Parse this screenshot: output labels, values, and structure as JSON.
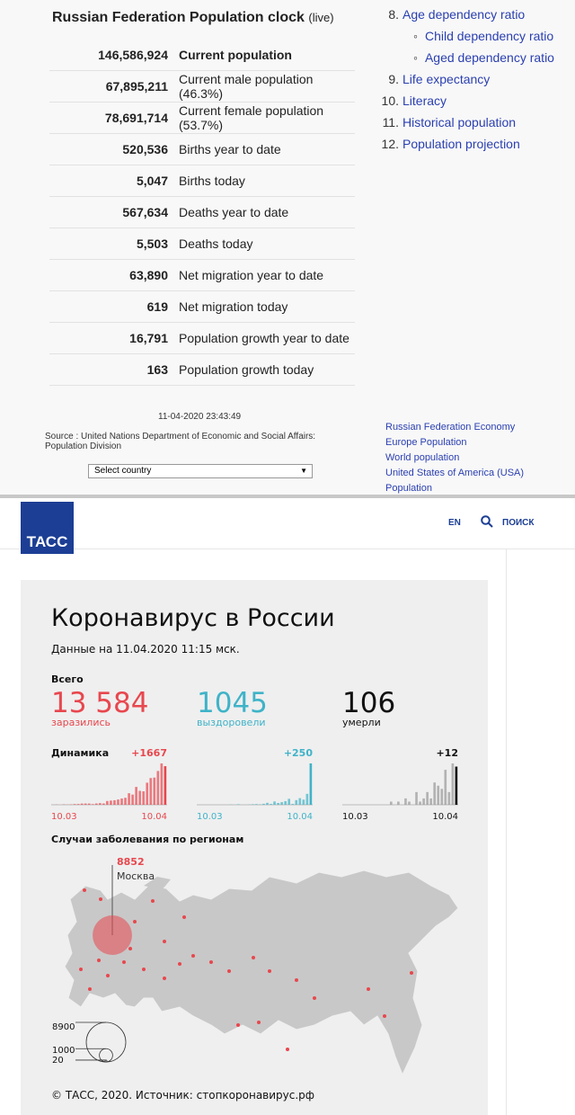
{
  "population_clock": {
    "title": "Russian Federation Population clock",
    "title_note": "(live)",
    "rows": [
      [
        "146,586,924",
        "Current population"
      ],
      [
        "67,895,211",
        "Current male population (46.3%)"
      ],
      [
        "78,691,714",
        "Current female population (53.7%)"
      ],
      [
        "520,536",
        "Births year to date"
      ],
      [
        "5,047",
        "Births today"
      ],
      [
        "567,634",
        "Deaths year to date"
      ],
      [
        "5,503",
        "Deaths today"
      ],
      [
        "63,890",
        "Net migration year to date"
      ],
      [
        "619",
        "Net migration today"
      ],
      [
        "16,791",
        "Population growth year to date"
      ],
      [
        "163",
        "Population growth today"
      ]
    ],
    "timestamp": "11-04-2020 23:43:49",
    "source": "Source : United Nations Department of Economic and Social Affairs: Population Division",
    "select": "Select country"
  },
  "toc": [
    {
      "number": "8.",
      "label": "Age dependency ratio",
      "children": [
        "Child dependency ratio",
        "Aged dependency ratio"
      ]
    },
    {
      "number": "9.",
      "label": "Life expectancy"
    },
    {
      "number": "10.",
      "label": "Literacy"
    },
    {
      "number": "11.",
      "label": "Historical population"
    },
    {
      "number": "12.",
      "label": "Population projection"
    }
  ],
  "related_links": [
    "Russian Federation Economy",
    "Europe Population",
    "World population",
    "United States of America (USA)",
    "Population"
  ],
  "tass": {
    "logo": "ТАСС",
    "lang": "EN",
    "search": "ПОИСК"
  },
  "infographic": {
    "title": "Коронавирус в России",
    "date_note": "Данные на 11.04.2020 11:15 мск.",
    "total_label": "Всего",
    "stats": [
      {
        "value": "13 584",
        "label": "заразились",
        "color": "#e8474e"
      },
      {
        "value": "1045",
        "label": "выздоровели",
        "color": "#3fb3c8"
      },
      {
        "value": "106",
        "label": "умерли",
        "color": "#111111"
      }
    ],
    "dynamics_label": "Динамика",
    "charts": [
      {
        "delta": "+1667",
        "start": "10.03",
        "end": "10.04",
        "color": "#e8474e",
        "values": [
          3,
          8,
          0,
          14,
          6,
          14,
          30,
          33,
          52,
          54,
          53,
          28,
          57,
          71,
          57,
          163,
          182,
          196,
          228,
          270,
          302,
          500,
          440,
          771,
          601,
          582,
          954,
          1154,
          1175,
          1459,
          1786,
          1667
        ]
      },
      {
        "delta": "+250",
        "start": "10.03",
        "end": "10.04",
        "color": "#3fb3c8",
        "values": [
          0,
          0,
          0,
          0,
          0,
          0,
          0,
          0,
          0,
          1,
          0,
          3,
          0,
          0,
          1,
          3,
          4,
          2,
          6,
          12,
          5,
          20,
          11,
          16,
          22,
          36,
          5,
          28,
          40,
          31,
          66,
          250
        ]
      },
      {
        "delta": "+12",
        "start": "10.03",
        "end": "10.04",
        "color": "#999999",
        "last_color": "#111111",
        "values": [
          0,
          0,
          0,
          0,
          0,
          0,
          0,
          0,
          0,
          0,
          0,
          0,
          0,
          1,
          0,
          1,
          0,
          2,
          1,
          0,
          4,
          1,
          2,
          4,
          2,
          7,
          6,
          5,
          11,
          4,
          13,
          12
        ]
      }
    ],
    "map_title": "Случаи заболевания по регионам",
    "moscow": {
      "value": 8852,
      "label": "Москва"
    },
    "legend": [
      8900,
      1000,
      20
    ],
    "footer": "© ТАСС, 2020. Источник: стопкоронавирус.рф"
  }
}
